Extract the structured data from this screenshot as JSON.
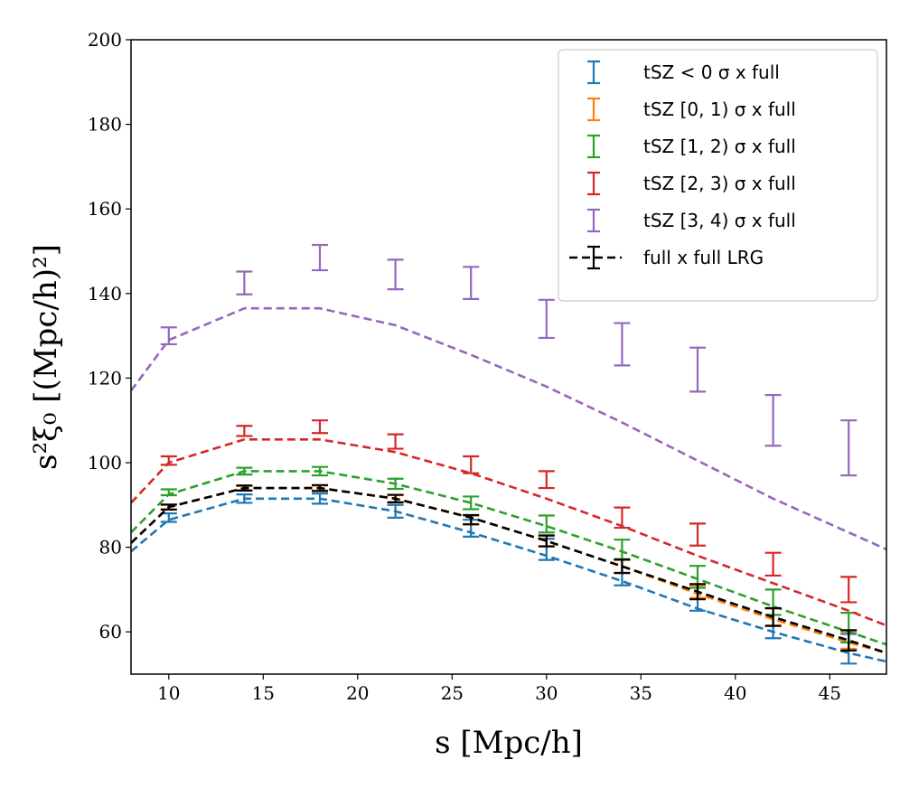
{
  "chart_data": {
    "type": "line",
    "title": "",
    "xlabel": "s [Mpc/h]",
    "ylabel": "s²ξ₀ [(Mpc/h)²]",
    "xlim": [
      8,
      48
    ],
    "ylim": [
      50,
      200
    ],
    "xticks": [
      10,
      15,
      20,
      25,
      30,
      35,
      40,
      45
    ],
    "yticks": [
      60,
      80,
      100,
      120,
      140,
      160,
      180,
      200
    ],
    "grid": false,
    "legend_position": "top-right",
    "model_x": [
      8,
      10,
      14,
      18,
      22,
      26,
      30,
      34,
      38,
      42,
      46,
      48
    ],
    "data_x": [
      10,
      14,
      18,
      22,
      26,
      30,
      34,
      38,
      42,
      46
    ],
    "series": [
      {
        "name": "tSZ < 0 σ x full",
        "color": "#1f77b4",
        "model": [
          79,
          86.5,
          91.5,
          91.5,
          88.5,
          83.5,
          78,
          72,
          65.5,
          60,
          55,
          53
        ],
        "data": [
          87,
          91.5,
          91.5,
          88.5,
          84.5,
          79.5,
          74,
          68,
          62,
          56
        ],
        "err": [
          1,
          1,
          1.2,
          1.5,
          2,
          2.5,
          3,
          3,
          3.5,
          3.5
        ]
      },
      {
        "name": "tSZ [0, 1) σ x full",
        "color": "#ff7f0e",
        "model": [
          81,
          89.5,
          94,
          94,
          91.5,
          87,
          81.5,
          75.5,
          69,
          63,
          57.5,
          55
        ],
        "data": [
          89.5,
          94,
          94,
          91.5,
          86.5,
          81.5,
          75.5,
          69.5,
          63.5,
          58
        ],
        "err": [
          0.5,
          0.5,
          0.6,
          0.8,
          1,
          1.2,
          1.5,
          1.5,
          2,
          2
        ]
      },
      {
        "name": "tSZ [1, 2) σ x full",
        "color": "#2ca02c",
        "model": [
          83.5,
          92.5,
          98,
          98,
          95,
          90.5,
          85,
          79,
          72.5,
          66,
          60,
          57
        ],
        "data": [
          93,
          98,
          98,
          95,
          90.5,
          85.5,
          79.5,
          73,
          67,
          61
        ],
        "err": [
          0.7,
          0.8,
          1,
          1.2,
          1.5,
          2,
          2.3,
          2.6,
          3,
          3.5
        ]
      },
      {
        "name": "tSZ [2, 3) σ x full",
        "color": "#d62728",
        "model": [
          90.5,
          100,
          105.5,
          105.5,
          102.5,
          97.5,
          91.5,
          85,
          78,
          71.5,
          65,
          61.5
        ],
        "data": [
          100.5,
          107.5,
          108.5,
          105,
          99.5,
          96,
          87,
          83,
          76,
          70
        ],
        "err": [
          1,
          1.2,
          1.5,
          1.7,
          2,
          2,
          2.4,
          2.6,
          2.7,
          3
        ]
      },
      {
        "name": "tSZ [3, 4) σ x full",
        "color": "#9467bd",
        "model": [
          117,
          129,
          136.5,
          136.5,
          132.5,
          125.5,
          118,
          109.5,
          100.5,
          91.5,
          83.5,
          79.5
        ],
        "data": [
          130,
          142.5,
          148.5,
          144.5,
          142.5,
          134,
          128,
          122,
          110,
          103.5
        ],
        "err": [
          2,
          2.7,
          3,
          3.5,
          3.8,
          4.5,
          5,
          5.2,
          6,
          6.5
        ]
      },
      {
        "name": "full x full LRG",
        "color": "#000000",
        "model": [
          81,
          89.5,
          94,
          94,
          91.5,
          87,
          81.5,
          75.5,
          69.5,
          63.5,
          58,
          55
        ],
        "data": [
          89.5,
          94,
          94,
          91.5,
          86.5,
          81.5,
          75.5,
          69.5,
          63.5,
          58
        ],
        "err": [
          0.6,
          0.6,
          0.7,
          0.9,
          1.1,
          1.3,
          1.6,
          1.8,
          2.1,
          2.4
        ]
      }
    ]
  }
}
